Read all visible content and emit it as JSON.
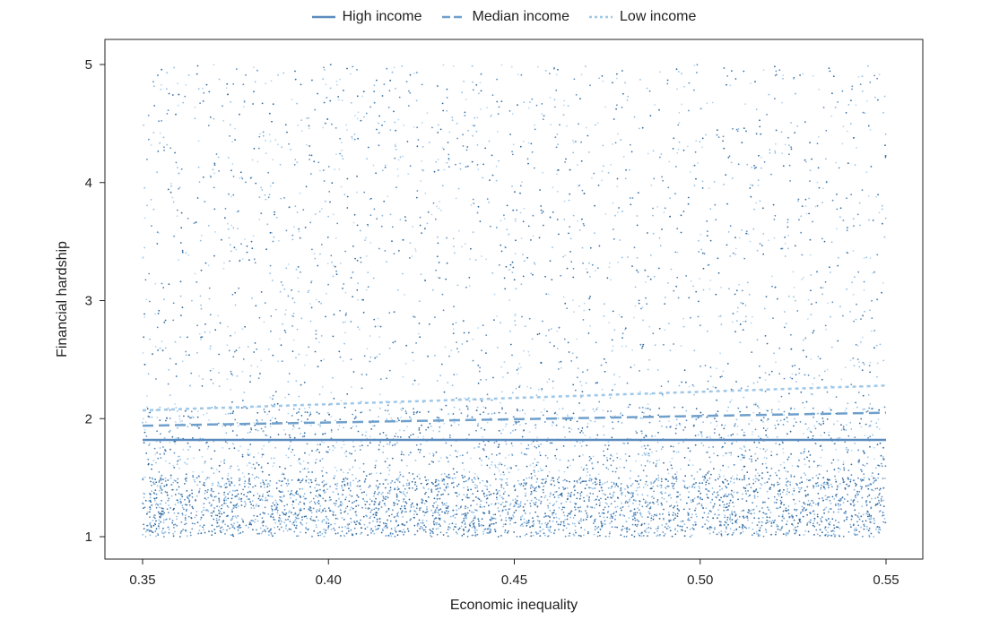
{
  "chart_data": {
    "type": "scatter",
    "xlabel": "Economic inequality",
    "ylabel": "Financial hardship",
    "xlim": [
      0.35,
      0.55
    ],
    "ylim": [
      1,
      5
    ],
    "x_ticks": [
      "0.35",
      "0.40",
      "0.45",
      "0.50",
      "0.55"
    ],
    "y_ticks": [
      "1",
      "2",
      "3",
      "4",
      "5"
    ],
    "legend_position": "top-center",
    "grid": false,
    "series": [
      {
        "name": "High income",
        "line_style": "solid",
        "color": "#5b8bbd",
        "fit_line": {
          "x": [
            0.35,
            0.55
          ],
          "y": [
            1.82,
            1.82
          ]
        }
      },
      {
        "name": "Median income",
        "line_style": "dashed",
        "color": "#6fa0cc",
        "fit_line": {
          "x": [
            0.35,
            0.55
          ],
          "y": [
            1.94,
            2.05
          ]
        }
      },
      {
        "name": "Low income",
        "line_style": "dotted",
        "color": "#9fc8e8",
        "fit_line": {
          "x": [
            0.35,
            0.55
          ],
          "y": [
            2.07,
            2.28
          ]
        }
      }
    ],
    "scatter_colors": [
      "#2f6a9e",
      "#5b8bbd",
      "#8fbde3",
      "#b5d6f0"
    ]
  }
}
